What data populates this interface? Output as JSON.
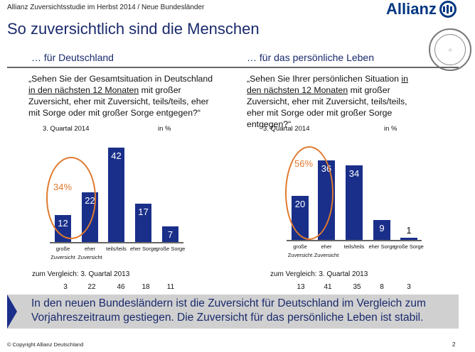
{
  "header": {
    "topline": "Allianz Zuversichtsstudie im Herbst 2014 / Neue Bundesländer",
    "logo": "Allianz",
    "seal": "UNIVERSITÄT HOHENHEIM 1818",
    "title": "So zuversichtlich sind die Menschen"
  },
  "left": {
    "subtitle": "… für Deutschland",
    "question_pre": "„Sehen Sie der Gesamtsituation in Deutschland ",
    "question_u": "in den nächsten 12 Monaten",
    "question_post": " mit großer Zuversicht, eher mit Zuversicht, teils/teils, eher mit Sorge oder mit großer Sorge entgegen?“"
  },
  "right": {
    "subtitle": "… für das persönliche Leben",
    "question_pre": "„Sehen Sie Ihrer persönlichen Situation ",
    "question_u": "in den nächsten 12 Monaten",
    "question_post": " mit großer Zuversicht, eher mit Zuversicht, teils/teils, eher mit Sorge oder mit großer Sorge entgegen?“"
  },
  "chart_data": [
    {
      "type": "bar",
      "period": "3. Quartal 2014",
      "unit": "in %",
      "categories": [
        "große Zuversicht",
        "eher Zuversicht",
        "teils/teils",
        "eher Sorge",
        "große Sorge"
      ],
      "values": [
        12,
        22,
        42,
        17,
        7
      ],
      "highlight": "34%",
      "comparison_label": "zum Vergleich: 3. Quartal 2013",
      "comparison_values": [
        3,
        22,
        46,
        18,
        11
      ],
      "ylim": [
        0,
        45
      ]
    },
    {
      "type": "bar",
      "period": "3. Quartal 2014",
      "unit": "in %",
      "categories": [
        "große Zuversicht",
        "eher Zuversicht",
        "teils/teils",
        "eher Sorge",
        "große Sorge"
      ],
      "values": [
        20,
        36,
        34,
        9,
        1
      ],
      "highlight": "56%",
      "comparison_label": "zum Vergleich: 3. Quartal 2013",
      "comparison_values": [
        13,
        41,
        35,
        8,
        3
      ],
      "ylim": [
        0,
        45
      ]
    }
  ],
  "colors": {
    "bar": "#1a2f8a",
    "highlight": "#e07a2e",
    "title": "#1a2a6c"
  },
  "banner": {
    "text": "In den neuen Bundesländern ist die Zuversicht für Deutschland im Vergleich zum Vorjahreszeitraum gestiegen. Die Zuversicht für das persönliche Leben ist stabil."
  },
  "footer": {
    "copyright": "© Copyright Allianz Deutschland",
    "page": "2"
  }
}
